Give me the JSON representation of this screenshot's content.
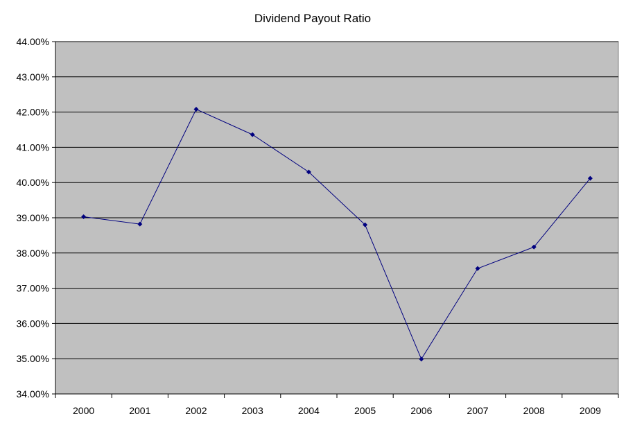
{
  "chart_data": {
    "type": "line",
    "title": "Dividend Payout Ratio",
    "xlabel": "",
    "ylabel": "",
    "categories": [
      "2000",
      "2001",
      "2002",
      "2003",
      "2004",
      "2005",
      "2006",
      "2007",
      "2008",
      "2009"
    ],
    "series": [
      {
        "values": [
          39.03,
          38.82,
          42.08,
          41.36,
          40.3,
          38.8,
          34.99,
          37.56,
          38.17,
          40.12
        ]
      }
    ],
    "y_ticks": [
      "34.00%",
      "35.00%",
      "36.00%",
      "37.00%",
      "38.00%",
      "39.00%",
      "40.00%",
      "41.00%",
      "42.00%",
      "43.00%",
      "44.00%"
    ],
    "ylim": [
      34,
      44
    ],
    "grid": true,
    "legend": "none",
    "colors": {
      "plot_background": "#c0c0c0",
      "line": "#00007f",
      "marker": "#00007f",
      "gridline": "#000000"
    }
  }
}
